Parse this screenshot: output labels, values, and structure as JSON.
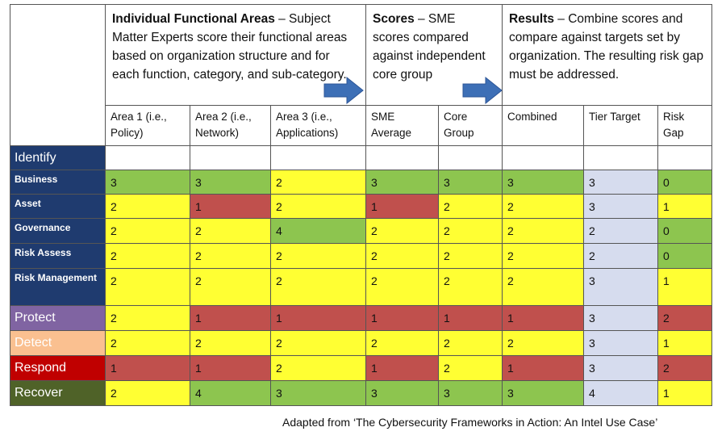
{
  "header": {
    "groups": [
      {
        "title": "Individual Functional Areas",
        "text": " – Subject Matter Experts score their functional areas based on organization structure and for each function, category, and sub-category."
      },
      {
        "title": "Scores",
        "text": " – SME scores compared against independent core group"
      },
      {
        "title": "Results",
        "text": " – Combine scores and compare against targets set by organization.  The resulting risk gap must be addressed."
      }
    ]
  },
  "columns": [
    "Area 1 (i.e., Policy)",
    "Area 2 (i.e., Network)",
    "Area 3 (i.e., Applications)",
    "SME Average",
    "Core Group",
    "Combined",
    "Tier Target",
    "Risk Gap"
  ],
  "rows": [
    {
      "label": "Identify",
      "color": "#1f3b6f",
      "cells": []
    },
    {
      "label": "Business",
      "color": "#1f3b6f",
      "cells": [
        {
          "value": 3,
          "color": "#8dc54f"
        },
        {
          "value": 3,
          "color": "#8dc54f"
        },
        {
          "value": 2,
          "color": "#ffff33"
        },
        {
          "value": 3,
          "color": "#8dc54f"
        },
        {
          "value": 3,
          "color": "#8dc54f"
        },
        {
          "value": 3,
          "color": "#8dc54f"
        },
        {
          "value": 3,
          "color": "#d6dcee"
        },
        {
          "value": 0,
          "color": "#8dc54f"
        }
      ]
    },
    {
      "label": "Asset",
      "color": "#1f3b6f",
      "cells": [
        {
          "value": 2,
          "color": "#ffff33"
        },
        {
          "value": 1,
          "color": "#c0504d"
        },
        {
          "value": 2,
          "color": "#ffff33"
        },
        {
          "value": 1,
          "color": "#c0504d"
        },
        {
          "value": 2,
          "color": "#ffff33"
        },
        {
          "value": 2,
          "color": "#ffff33"
        },
        {
          "value": 3,
          "color": "#d6dcee"
        },
        {
          "value": 1,
          "color": "#ffff33"
        }
      ]
    },
    {
      "label": "Governance",
      "color": "#1f3b6f",
      "cells": [
        {
          "value": 2,
          "color": "#ffff33"
        },
        {
          "value": 2,
          "color": "#ffff33"
        },
        {
          "value": 4,
          "color": "#8dc54f"
        },
        {
          "value": 2,
          "color": "#ffff33"
        },
        {
          "value": 2,
          "color": "#ffff33"
        },
        {
          "value": 2,
          "color": "#ffff33"
        },
        {
          "value": 2,
          "color": "#d6dcee"
        },
        {
          "value": 0,
          "color": "#8dc54f"
        }
      ]
    },
    {
      "label": "Risk Assess",
      "color": "#1f3b6f",
      "cells": [
        {
          "value": 2,
          "color": "#ffff33"
        },
        {
          "value": 2,
          "color": "#ffff33"
        },
        {
          "value": 2,
          "color": "#ffff33"
        },
        {
          "value": 2,
          "color": "#ffff33"
        },
        {
          "value": 2,
          "color": "#ffff33"
        },
        {
          "value": 2,
          "color": "#ffff33"
        },
        {
          "value": 2,
          "color": "#d6dcee"
        },
        {
          "value": 0,
          "color": "#8dc54f"
        }
      ]
    },
    {
      "label": "Risk Management",
      "color": "#1f3b6f",
      "cells": [
        {
          "value": 2,
          "color": "#ffff33"
        },
        {
          "value": 2,
          "color": "#ffff33"
        },
        {
          "value": 2,
          "color": "#ffff33"
        },
        {
          "value": 2,
          "color": "#ffff33"
        },
        {
          "value": 2,
          "color": "#ffff33"
        },
        {
          "value": 2,
          "color": "#ffff33"
        },
        {
          "value": 3,
          "color": "#d6dcee"
        },
        {
          "value": 1,
          "color": "#ffff33"
        }
      ]
    },
    {
      "label": "Protect",
      "color": "#8064a2",
      "cells": [
        {
          "value": 2,
          "color": "#ffff33"
        },
        {
          "value": 1,
          "color": "#c0504d"
        },
        {
          "value": 1,
          "color": "#c0504d"
        },
        {
          "value": 1,
          "color": "#c0504d"
        },
        {
          "value": 1,
          "color": "#c0504d"
        },
        {
          "value": 1,
          "color": "#c0504d"
        },
        {
          "value": 3,
          "color": "#d6dcee"
        },
        {
          "value": 2,
          "color": "#c0504d"
        }
      ]
    },
    {
      "label": "Detect",
      "color": "#fac090",
      "cells": [
        {
          "value": 2,
          "color": "#ffff33"
        },
        {
          "value": 2,
          "color": "#ffff33"
        },
        {
          "value": 2,
          "color": "#ffff33"
        },
        {
          "value": 2,
          "color": "#ffff33"
        },
        {
          "value": 2,
          "color": "#ffff33"
        },
        {
          "value": 2,
          "color": "#ffff33"
        },
        {
          "value": 3,
          "color": "#d6dcee"
        },
        {
          "value": 1,
          "color": "#ffff33"
        }
      ]
    },
    {
      "label": "Respond",
      "color": "#c00000",
      "cells": [
        {
          "value": 1,
          "color": "#c0504d"
        },
        {
          "value": 1,
          "color": "#c0504d"
        },
        {
          "value": 2,
          "color": "#ffff33"
        },
        {
          "value": 1,
          "color": "#c0504d"
        },
        {
          "value": 2,
          "color": "#ffff33"
        },
        {
          "value": 1,
          "color": "#c0504d"
        },
        {
          "value": 3,
          "color": "#d6dcee"
        },
        {
          "value": 2,
          "color": "#c0504d"
        }
      ]
    },
    {
      "label": "Recover",
      "color": "#4f6228",
      "cells": [
        {
          "value": 2,
          "color": "#ffff33"
        },
        {
          "value": 4,
          "color": "#8dc54f"
        },
        {
          "value": 3,
          "color": "#8dc54f"
        },
        {
          "value": 3,
          "color": "#8dc54f"
        },
        {
          "value": 3,
          "color": "#8dc54f"
        },
        {
          "value": 3,
          "color": "#8dc54f"
        },
        {
          "value": 4,
          "color": "#d6dcee"
        },
        {
          "value": 1,
          "color": "#ffff33"
        }
      ]
    }
  ],
  "footer": "Adapted from ‘The Cybersecurity Frameworks in Action:  An Intel Use Case’"
}
